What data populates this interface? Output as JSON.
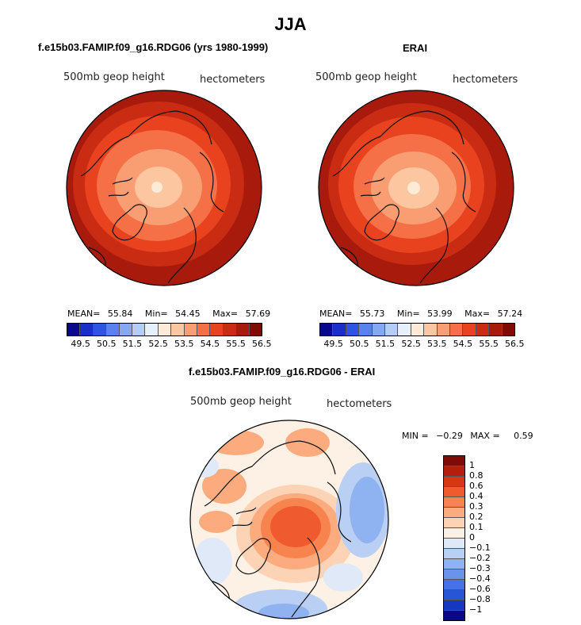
{
  "title": "JJA",
  "panels": [
    {
      "title": "f.e15b03.FAMIP.f09_g16.RDG06 (yrs 1980-1999)",
      "variable": "500mb geop height",
      "units": "hectometers",
      "stats": {
        "mean_label": "MEAN=",
        "mean": "55.84",
        "min_label": "Min=",
        "min": "54.45",
        "max_label": "Max=",
        "max": "57.69"
      }
    },
    {
      "title": "ERAI",
      "variable": "500mb geop height",
      "units": "hectometers",
      "stats": {
        "mean_label": "MEAN=",
        "mean": "55.73",
        "min_label": "Min=",
        "min": "53.99",
        "max_label": "Max=",
        "max": "57.24"
      }
    }
  ],
  "colorbar": {
    "colors": [
      "#08088a",
      "#1a2fc8",
      "#2d55e0",
      "#5a82ee",
      "#86a8f4",
      "#b4ccf8",
      "#e6f0fb",
      "#fdebd8",
      "#fbc6a0",
      "#f99e72",
      "#f56f47",
      "#e8421f",
      "#c92b13",
      "#a81a0c",
      "#7e0c05"
    ],
    "tick_labels": [
      "49.5",
      "50.5",
      "51.5",
      "52.5",
      "53.5",
      "54.5",
      "55.5",
      "56.5"
    ]
  },
  "diff_panel": {
    "title": "f.e15b03.FAMIP.f09_g16.RDG06 - ERAI",
    "variable": "500mb geop height",
    "units": "hectometers",
    "stats": {
      "min_label": "MIN =",
      "min": "−0.29",
      "max_label": "MAX =",
      "max": "0.59"
    },
    "colorbar_colors": [
      "#7e0c05",
      "#b51e0e",
      "#d93617",
      "#ef5a2f",
      "#f7834f",
      "#fbab7e",
      "#fdd3b6",
      "#fdf0e4",
      "#dfe9f7",
      "#b9cff4",
      "#8fb2f0",
      "#6a93ea",
      "#4574e2",
      "#2755d6",
      "#1637c0",
      "#08088a"
    ],
    "tick_labels": [
      "1",
      "0.8",
      "0.6",
      "0.4",
      "0.3",
      "0.2",
      "0.1",
      "0",
      "−0.1",
      "−0.2",
      "−0.3",
      "−0.4",
      "−0.6",
      "−0.8",
      "−1"
    ]
  }
}
